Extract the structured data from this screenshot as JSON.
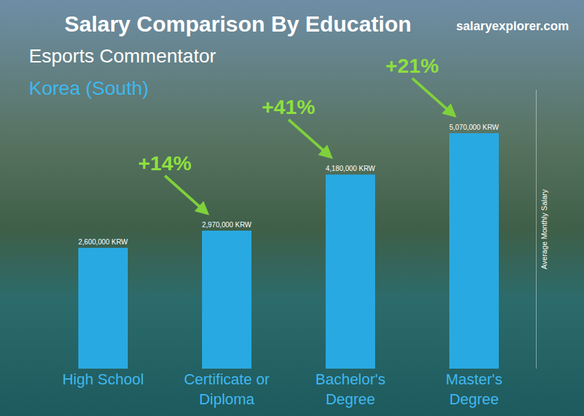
{
  "chart_data": {
    "type": "bar",
    "title": "Salary Comparison By Education",
    "subtitle": [
      "Esports Commentator",
      "Korea (South)"
    ],
    "source": "salaryexplorer.com",
    "y_label": "Average Monthly Salary",
    "categories": [
      "High School",
      "Certificate or Diploma",
      "Bachelor's Degree",
      "Master's Degree"
    ],
    "values": [
      2600000,
      2970000,
      4180000,
      5070000
    ],
    "value_labels": [
      "2,600,000 KRW",
      "2,970,000 KRW",
      "4,180,000 KRW",
      "5,070,000 KRW"
    ],
    "color": "#29a9e1",
    "ylim": [
      0,
      6000000
    ],
    "grid": false,
    "data_labels": true,
    "tick_labels": "x",
    "annotations": [
      {
        "text": "+14%",
        "from": "High School",
        "to": "Certificate or Diploma"
      },
      {
        "text": "+41%",
        "from": "Certificate or Diploma",
        "to": "Bachelor's Degree"
      },
      {
        "text": "+21%",
        "from": "Bachelor's Degree",
        "to": "Master's Degree"
      }
    ]
  }
}
